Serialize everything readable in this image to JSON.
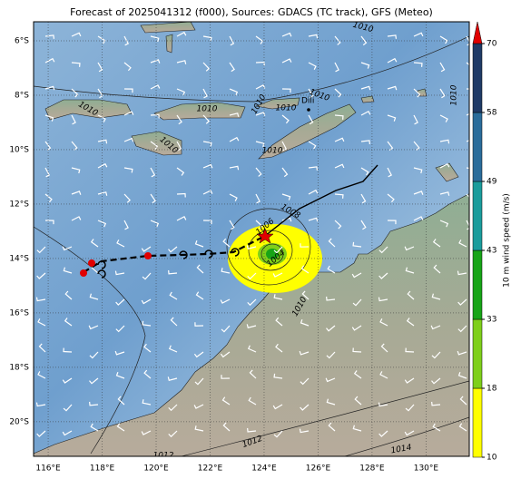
{
  "map": {
    "title": "Forecast of 2025041312 (f000), Sources: GDACS (TC track), GFS (Meteo)",
    "lonlim": [
      115.46,
      131.6
    ],
    "latlim": [
      -21.27,
      -5.3
    ],
    "lon_ticks": [
      {
        "value": 116,
        "label": "116°E"
      },
      {
        "value": 118,
        "label": "118°E"
      },
      {
        "value": 120,
        "label": "120°E"
      },
      {
        "value": 122,
        "label": "122°E"
      },
      {
        "value": 124,
        "label": "124°E"
      },
      {
        "value": 126,
        "label": "126°E"
      },
      {
        "value": 128,
        "label": "128°E"
      },
      {
        "value": 130,
        "label": "130°E"
      }
    ],
    "lat_ticks": [
      {
        "value": -6,
        "label": "6°S"
      },
      {
        "value": -8,
        "label": "8°S"
      },
      {
        "value": -10,
        "label": "10°S"
      },
      {
        "value": -12,
        "label": "12°S"
      },
      {
        "value": -14,
        "label": "14°S"
      },
      {
        "value": -16,
        "label": "16°S"
      },
      {
        "value": -18,
        "label": "18°S"
      },
      {
        "value": -20,
        "label": "20°S"
      }
    ],
    "isobar_labels": [
      1010,
      1010,
      1010,
      1010,
      1010,
      1010,
      1010,
      1010,
      1010,
      1008,
      1006,
      1004,
      1010,
      1012,
      1012,
      1014
    ],
    "place_label": "Dili",
    "colorbar": {
      "label": "10 m wind speed (m/s)",
      "ticks": [
        10,
        18,
        33,
        43,
        49,
        58,
        70
      ],
      "colors": [
        "#ffff00",
        "#7fcf1a",
        "#17a417",
        "#1a9c9c",
        "#2a6c9a",
        "#1f3a66"
      ],
      "extend_color": "#e00000"
    }
  }
}
